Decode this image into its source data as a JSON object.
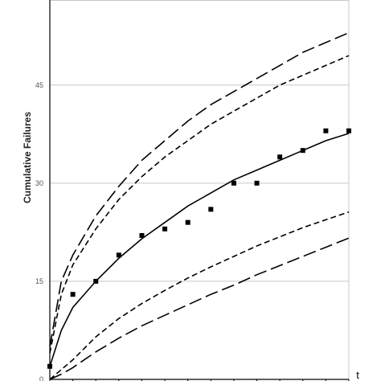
{
  "chart_data": {
    "type": "scatter",
    "title": "",
    "xlabel": "t",
    "ylabel": "Cumulative Failures",
    "ylim": [
      0,
      58
    ],
    "xlim": [
      0,
      13
    ],
    "yticks": [
      0,
      15,
      30,
      45
    ],
    "ytick_labels": [
      "0",
      "15",
      "30",
      "45"
    ],
    "xticks": [
      0,
      1,
      2,
      3,
      4,
      5,
      6,
      7,
      8,
      9,
      10,
      11,
      12,
      13
    ],
    "grid": true,
    "series": [
      {
        "style": "markers",
        "marker": "square",
        "x": [
          0,
          1,
          2,
          3,
          4,
          5,
          6,
          7,
          8,
          9,
          10,
          11,
          12,
          13
        ],
        "y": [
          2,
          13,
          15,
          19,
          22,
          23,
          24,
          26,
          30,
          30,
          34,
          35,
          38,
          38
        ]
      },
      {
        "style": "solid",
        "x": [
          0,
          0.5,
          1,
          2,
          3,
          4,
          5,
          6,
          7,
          8,
          9,
          10,
          11,
          12,
          13
        ],
        "y": [
          2,
          7.5,
          11,
          15,
          18.5,
          21.5,
          24,
          26.5,
          28.5,
          30.5,
          32,
          33.5,
          35,
          36.5,
          37.6
        ]
      },
      {
        "style": "long-dash",
        "x": [
          0,
          0.5,
          1,
          2,
          3,
          4,
          5,
          6,
          7,
          8,
          9,
          10,
          11,
          12,
          13
        ],
        "y": [
          5,
          15,
          19,
          25,
          29.5,
          33.5,
          36.5,
          39.5,
          42,
          44,
          46,
          48,
          50,
          51.5,
          53
        ]
      },
      {
        "style": "short-dash",
        "x": [
          0,
          0.5,
          1,
          2,
          3,
          4,
          5,
          6,
          7,
          8,
          9,
          10,
          11,
          12,
          13
        ],
        "y": [
          4,
          13,
          17.5,
          23,
          27.5,
          31,
          34,
          36.5,
          39,
          41,
          43,
          45,
          46.5,
          48,
          49.5
        ]
      },
      {
        "style": "short-dash",
        "x": [
          0,
          0.5,
          1,
          2,
          3,
          4,
          5,
          6,
          7,
          8,
          9,
          10,
          11,
          12,
          13
        ],
        "y": [
          0,
          1.5,
          3,
          6.5,
          9.3,
          11.6,
          13.6,
          15.5,
          17.2,
          18.8,
          20.4,
          21.8,
          23.2,
          24.4,
          25.6
        ]
      },
      {
        "style": "long-dash",
        "x": [
          0,
          0.5,
          1,
          2,
          3,
          4,
          5,
          6,
          7,
          8,
          9,
          10,
          11,
          12,
          13
        ],
        "y": [
          0,
          0.8,
          1.8,
          4.2,
          6.3,
          8.2,
          9.8,
          11.4,
          13,
          14.4,
          16,
          17.4,
          18.8,
          20.2,
          21.6
        ]
      }
    ]
  }
}
